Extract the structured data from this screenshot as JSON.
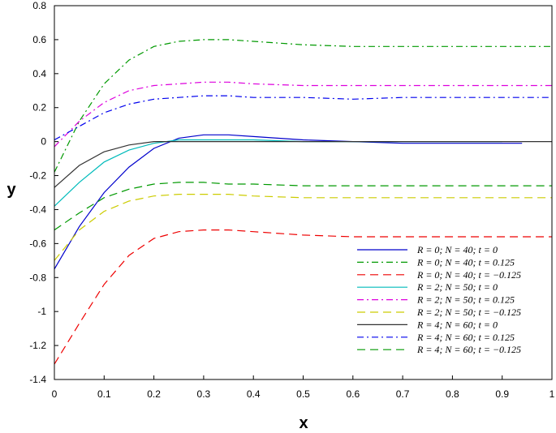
{
  "chart_data": {
    "type": "line",
    "title": "",
    "xlabel": "x",
    "ylabel": "y",
    "xlim": [
      0,
      1
    ],
    "ylim": [
      -1.4,
      0.8
    ],
    "xticks": [
      0,
      0.1,
      0.2,
      0.3,
      0.4,
      0.5,
      0.6,
      0.7,
      0.8,
      0.9,
      1
    ],
    "xtick_labels": [
      "0",
      "0.1",
      "0.2",
      "0.3",
      "0.4",
      "0.5",
      "0.6",
      "0.7",
      "0.8",
      "0.9",
      "1"
    ],
    "yticks": [
      -1.4,
      -1.2,
      -1,
      -0.8,
      -0.6,
      -0.4,
      -0.2,
      0,
      0.2,
      0.4,
      0.6,
      0.8
    ],
    "ytick_labels": [
      "-1.4",
      "-1.2",
      "-1",
      "-0.8",
      "-0.6",
      "-0.4",
      "-0.2",
      "0",
      "0.2",
      "0.4",
      "0.6",
      "0.8"
    ],
    "grid": false,
    "legend_position": "bottom-right",
    "series": [
      {
        "name": "R = 0; N = 40; t = 0",
        "color": "#0000cc",
        "dash": "solid",
        "x": [
          0,
          0.05,
          0.1,
          0.15,
          0.2,
          0.25,
          0.3,
          0.35,
          0.4,
          0.5,
          0.6,
          0.7,
          0.8,
          0.9,
          0.94
        ],
        "y": [
          -0.75,
          -0.5,
          -0.3,
          -0.15,
          -0.04,
          0.02,
          0.04,
          0.04,
          0.03,
          0.01,
          0.0,
          -0.01,
          -0.01,
          -0.01,
          -0.01
        ]
      },
      {
        "name": "R = 0; N = 40; t = 0.125",
        "color": "#009900",
        "dash": "dashdot",
        "x": [
          0,
          0.05,
          0.1,
          0.15,
          0.2,
          0.25,
          0.3,
          0.35,
          0.4,
          0.5,
          0.6,
          0.7,
          0.8,
          0.9,
          1
        ],
        "y": [
          -0.18,
          0.12,
          0.34,
          0.48,
          0.56,
          0.59,
          0.6,
          0.6,
          0.59,
          0.57,
          0.56,
          0.56,
          0.56,
          0.56,
          0.56
        ]
      },
      {
        "name": "R = 0; N = 40; t = −0.125",
        "color": "#ee0000",
        "dash": "dash",
        "x": [
          0,
          0.05,
          0.1,
          0.15,
          0.2,
          0.25,
          0.3,
          0.35,
          0.4,
          0.5,
          0.6,
          0.7,
          0.8,
          0.9,
          1
        ],
        "y": [
          -1.31,
          -1.07,
          -0.84,
          -0.67,
          -0.57,
          -0.53,
          -0.52,
          -0.52,
          -0.53,
          -0.55,
          -0.56,
          -0.56,
          -0.56,
          -0.56,
          -0.56
        ]
      },
      {
        "name": "R = 2; N = 50; t = 0",
        "color": "#00bbbb",
        "dash": "solid",
        "x": [
          0,
          0.05,
          0.1,
          0.15,
          0.2,
          0.25,
          0.3,
          0.35,
          0.4,
          0.5,
          0.6,
          0.7,
          0.8,
          0.9
        ],
        "y": [
          -0.38,
          -0.24,
          -0.12,
          -0.05,
          -0.01,
          0.01,
          0.01,
          0.01,
          0.01,
          0.0,
          0.0,
          0.0,
          0.0,
          0.0
        ]
      },
      {
        "name": "R = 2; N = 50; t = 0.125",
        "color": "#dd00dd",
        "dash": "dashdot",
        "x": [
          0,
          0.05,
          0.1,
          0.15,
          0.2,
          0.25,
          0.3,
          0.35,
          0.4,
          0.5,
          0.6,
          0.7,
          0.8,
          0.9,
          1
        ],
        "y": [
          -0.03,
          0.12,
          0.23,
          0.3,
          0.33,
          0.34,
          0.35,
          0.35,
          0.34,
          0.33,
          0.33,
          0.33,
          0.33,
          0.33,
          0.33
        ]
      },
      {
        "name": "R = 2; N = 50; t = −0.125",
        "color": "#cccc00",
        "dash": "dash",
        "x": [
          0,
          0.05,
          0.1,
          0.15,
          0.2,
          0.25,
          0.3,
          0.35,
          0.4,
          0.5,
          0.6,
          0.7,
          0.8,
          0.9,
          1
        ],
        "y": [
          -0.7,
          -0.52,
          -0.41,
          -0.35,
          -0.32,
          -0.31,
          -0.31,
          -0.31,
          -0.32,
          -0.33,
          -0.33,
          -0.33,
          -0.33,
          -0.33,
          -0.33
        ]
      },
      {
        "name": "R = 4; N = 60; t = 0",
        "color": "#333333",
        "dash": "solid",
        "x": [
          0,
          0.05,
          0.1,
          0.15,
          0.2,
          0.25,
          0.3,
          0.4,
          0.5,
          0.6,
          0.7,
          0.8,
          0.9,
          1
        ],
        "y": [
          -0.27,
          -0.14,
          -0.06,
          -0.02,
          0.0,
          0.0,
          0.0,
          0.0,
          0.0,
          0.0,
          0.0,
          0.0,
          0.0,
          0.0
        ]
      },
      {
        "name": "R = 4; N = 60; t = 0.125",
        "color": "#0000ee",
        "dash": "dashdot",
        "x": [
          0,
          0.05,
          0.1,
          0.15,
          0.2,
          0.25,
          0.3,
          0.35,
          0.4,
          0.5,
          0.6,
          0.7,
          0.8,
          0.9,
          1
        ],
        "y": [
          0.01,
          0.09,
          0.17,
          0.22,
          0.25,
          0.26,
          0.27,
          0.27,
          0.26,
          0.26,
          0.25,
          0.26,
          0.26,
          0.26,
          0.26
        ]
      },
      {
        "name": "R = 4; N = 60; t = −0.125",
        "color": "#009900",
        "dash": "dash",
        "x": [
          0,
          0.05,
          0.1,
          0.15,
          0.2,
          0.25,
          0.3,
          0.35,
          0.4,
          0.5,
          0.6,
          0.7,
          0.8,
          0.9,
          1
        ],
        "y": [
          -0.52,
          -0.42,
          -0.33,
          -0.28,
          -0.25,
          -0.24,
          -0.24,
          -0.25,
          -0.25,
          -0.26,
          -0.26,
          -0.26,
          -0.26,
          -0.26,
          -0.26
        ]
      }
    ]
  }
}
